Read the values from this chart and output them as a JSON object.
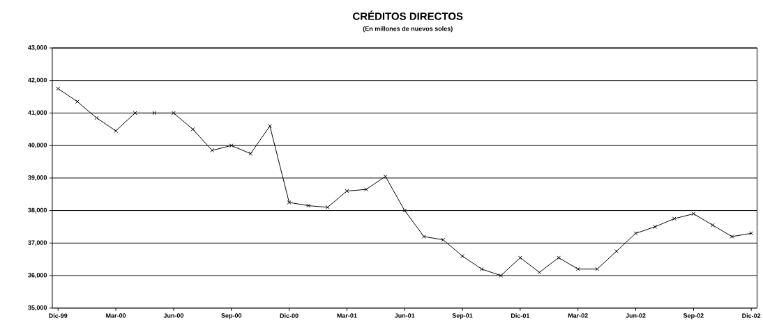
{
  "chart_data": {
    "type": "line",
    "title": "CRÉDITOS DIRECTOS",
    "subtitle": "(En millones de nuevos soles)",
    "categories": [
      "Dic-99",
      null,
      null,
      "Mar-00",
      null,
      null,
      "Jun-00",
      null,
      null,
      "Sep-00",
      null,
      null,
      "Dic-00",
      null,
      null,
      "Mar-01",
      null,
      null,
      "Jun-01",
      null,
      null,
      "Sep-01",
      null,
      null,
      "Dic-01",
      null,
      null,
      "Mar-02",
      null,
      null,
      "Jun-02",
      null,
      null,
      "Sep-02",
      null,
      null,
      "Dic-02"
    ],
    "series": [
      {
        "color": "#000000",
        "values": [
          41750,
          41350,
          40850,
          40450,
          41000,
          41000,
          41000,
          40500,
          39850,
          40000,
          39750,
          40600,
          38250,
          38150,
          38100,
          38600,
          38650,
          39050,
          38000,
          37200,
          37100,
          36600,
          36200,
          36000,
          36550,
          36100,
          36550,
          36200,
          36200,
          36750,
          37300,
          37500,
          37750,
          37900,
          37550,
          37200,
          37300
        ]
      }
    ],
    "ylim": [
      35000,
      43000
    ],
    "yticks": [
      {
        "value": 35000,
        "label": "35,000"
      },
      {
        "value": 36000,
        "label": "36,000"
      },
      {
        "value": 37000,
        "label": "37,000"
      },
      {
        "value": 38000,
        "label": "38,000"
      },
      {
        "value": 39000,
        "label": "39,000"
      },
      {
        "value": 40000,
        "label": "40,000"
      },
      {
        "value": 41000,
        "label": "41,000"
      },
      {
        "value": 42000,
        "label": "42,000"
      },
      {
        "value": 43000,
        "label": "43,000"
      }
    ],
    "grid": "y",
    "marker": "cross",
    "line_style": "solid"
  }
}
